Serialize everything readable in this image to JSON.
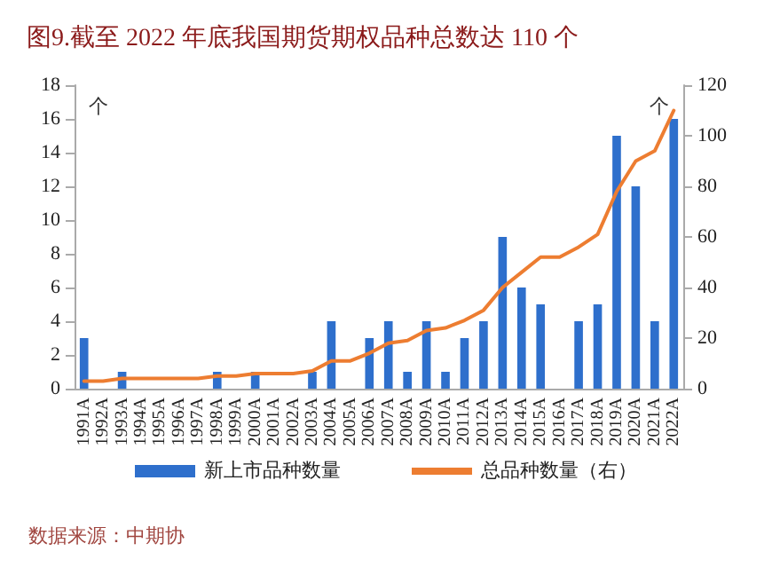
{
  "chart_data": {
    "type": "bar",
    "title": "图9.截至 2022 年底我国期货期权品种总数达 110 个",
    "ylabel": "个",
    "y2label": "个",
    "categories": [
      "1991A",
      "1992A",
      "1993A",
      "1994A",
      "1995A",
      "1996A",
      "1997A",
      "1998A",
      "1999A",
      "2000A",
      "2001A",
      "2002A",
      "2003A",
      "2004A",
      "2005A",
      "2006A",
      "2007A",
      "2008A",
      "2009A",
      "2010A",
      "2011A",
      "2012A",
      "2013A",
      "2014A",
      "2015A",
      "2016A",
      "2017A",
      "2018A",
      "2019A",
      "2020A",
      "2021A",
      "2022A"
    ],
    "series": [
      {
        "name": "新上市品种数量",
        "color": "#2e6fcc",
        "values": [
          3,
          0,
          1,
          0,
          0,
          0,
          0,
          1,
          0,
          1,
          0,
          0,
          1,
          4,
          0,
          3,
          4,
          1,
          4,
          1,
          3,
          4,
          9,
          6,
          5,
          0,
          4,
          5,
          15,
          12,
          4,
          16
        ]
      },
      {
        "name": "总品种数量（右）",
        "type": "line",
        "axis": "y2",
        "color": "#ed7d31",
        "values": [
          3,
          3,
          4,
          4,
          4,
          4,
          4,
          5,
          5,
          6,
          6,
          6,
          7,
          11,
          11,
          14,
          18,
          19,
          23,
          24,
          27,
          31,
          40,
          46,
          52,
          52,
          56,
          61,
          78,
          90,
          94,
          110
        ]
      }
    ],
    "ylim": [
      0,
      18
    ],
    "yticks": [
      0,
      2,
      4,
      6,
      8,
      10,
      12,
      14,
      16,
      18
    ],
    "y2lim": [
      0,
      120
    ],
    "y2ticks": [
      0,
      20,
      40,
      60,
      80,
      100,
      120
    ],
    "grid": false,
    "legend": "bottom",
    "marker": "none",
    "line_style": "solid",
    "annotations": [
      "数据来源：中期协"
    ]
  }
}
